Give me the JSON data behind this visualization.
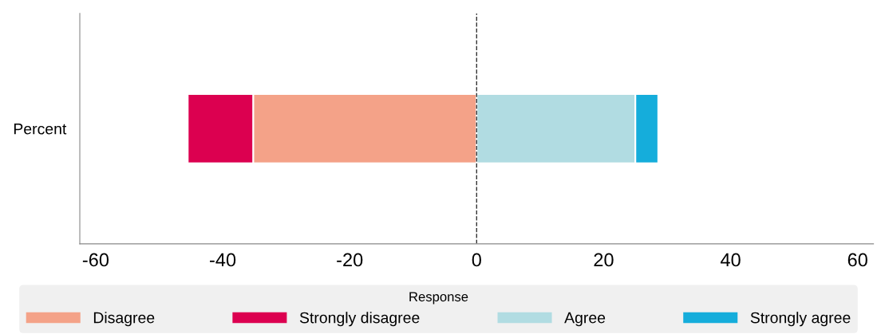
{
  "chart_data": {
    "type": "bar",
    "orientation": "horizontal",
    "stacked": true,
    "categories": [
      "Percent"
    ],
    "series": [
      {
        "name": "Disagree",
        "color": "#f4a288",
        "values": [
          -35.2
        ]
      },
      {
        "name": "Strongly disagree",
        "color": "#dc0050",
        "values": [
          -10.3
        ]
      },
      {
        "name": "Agree",
        "color": "#b1dce2",
        "values": [
          25
        ]
      },
      {
        "name": "Strongly agree",
        "color": "#15addb",
        "values": [
          3.6
        ]
      }
    ],
    "xlim": [
      -62.5,
      62.5
    ],
    "xticks": [
      -60,
      -40,
      -20,
      0,
      20,
      40,
      60
    ],
    "ref_lines": [
      {
        "axis": "x",
        "value": 0,
        "line_style": "dashed",
        "color": "#333333"
      }
    ],
    "legend": "bottom",
    "legend_title": "Response",
    "grid": false
  }
}
